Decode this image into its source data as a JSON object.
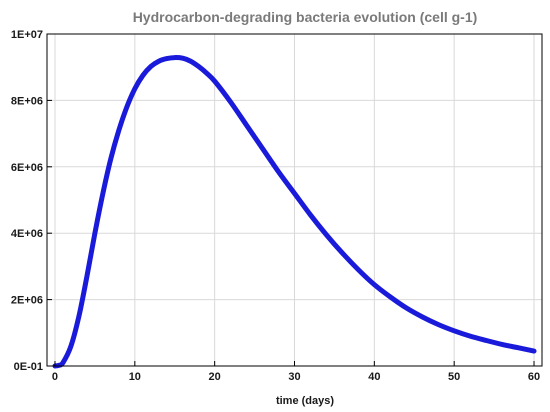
{
  "chart_data": {
    "type": "line",
    "title": "Hydrocarbon-degrading bacteria evolution  (cell g-1)",
    "xlabel": "time (days)",
    "ylabel": "",
    "xlim": [
      -1,
      61
    ],
    "ylim": [
      0,
      10000000
    ],
    "x_ticks": [
      0,
      10,
      20,
      30,
      40,
      50,
      60
    ],
    "y_ticks": [
      0,
      2000000,
      4000000,
      6000000,
      8000000,
      10000000
    ],
    "x_tick_labels": [
      "0",
      "10",
      "20",
      "30",
      "40",
      "50",
      "60"
    ],
    "y_tick_labels": [
      "0E-01",
      "2E+06",
      "4E+06",
      "6E+06",
      "8E+06",
      "1E+07"
    ],
    "grid": true,
    "series": [
      {
        "color": "#1a1adb",
        "x": [
          0,
          0.5,
          1,
          2,
          3,
          4,
          5,
          6,
          7,
          8,
          9,
          10,
          11,
          12,
          13,
          14,
          15,
          16,
          17,
          18,
          19,
          20,
          22,
          24,
          26,
          28,
          30,
          32,
          34,
          36,
          38,
          40,
          42,
          44,
          46,
          48,
          50,
          52,
          54,
          56,
          58,
          60
        ],
        "y": [
          0,
          20000,
          100000,
          600000,
          1500000,
          2700000,
          4000000,
          5200000,
          6250000,
          7100000,
          7800000,
          8350000,
          8750000,
          9020000,
          9180000,
          9260000,
          9290000,
          9270000,
          9180000,
          9020000,
          8820000,
          8580000,
          7950000,
          7250000,
          6550000,
          5850000,
          5200000,
          4550000,
          3950000,
          3400000,
          2900000,
          2450000,
          2080000,
          1750000,
          1480000,
          1250000,
          1060000,
          900000,
          770000,
          650000,
          550000,
          450000
        ]
      }
    ]
  },
  "colors": {
    "line": "#1a1adb",
    "grid": "#d9d9d9",
    "axis": "#000000",
    "title": "#7a7a7a"
  }
}
